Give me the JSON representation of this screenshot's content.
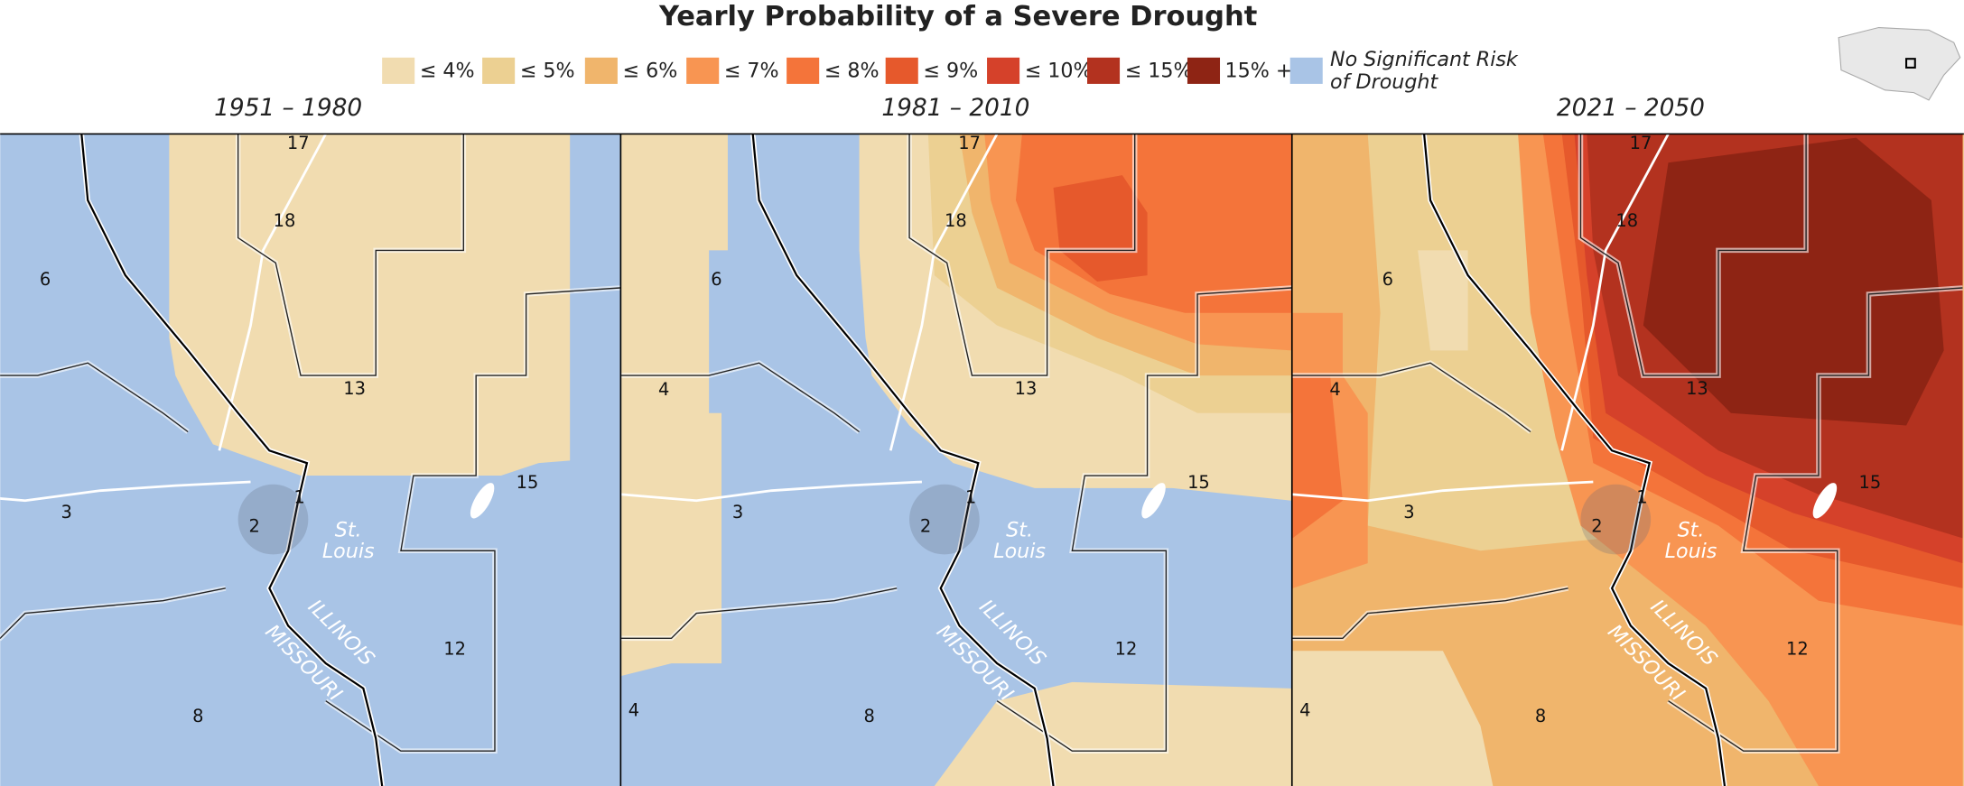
{
  "title": "Yearly Probability of a Severe Drought",
  "legend": [
    {
      "label": "≤ 4%",
      "color": "#f1dcb0"
    },
    {
      "label": "≤ 5%",
      "color": "#ecd092"
    },
    {
      "label": "≤ 6%",
      "color": "#f0b56c"
    },
    {
      "label": "≤ 7%",
      "color": "#f89552"
    },
    {
      "label": "≤ 8%",
      "color": "#f4743a"
    },
    {
      "label": "≤ 9%",
      "color": "#e6592c"
    },
    {
      "label": "≤ 10%",
      "color": "#d5412a"
    },
    {
      "label": "≤ 15%",
      "color": "#b3321f"
    },
    {
      "label": "15% +",
      "color": "#8e2414"
    },
    {
      "label": [
        "No Significant Risk",
        "of Drought"
      ],
      "color": "#a9c4e6"
    }
  ],
  "panels": [
    {
      "title": "1951 – 1980"
    },
    {
      "title": "1981 – 2010"
    },
    {
      "title": "2021 – 2050"
    }
  ],
  "map_labels": [
    "17",
    "18",
    "6",
    "13",
    "4",
    "3",
    "2",
    "1",
    "15",
    "12",
    "8",
    "St.",
    "Louis",
    "ILLINOIS",
    "MISSOURI"
  ]
}
